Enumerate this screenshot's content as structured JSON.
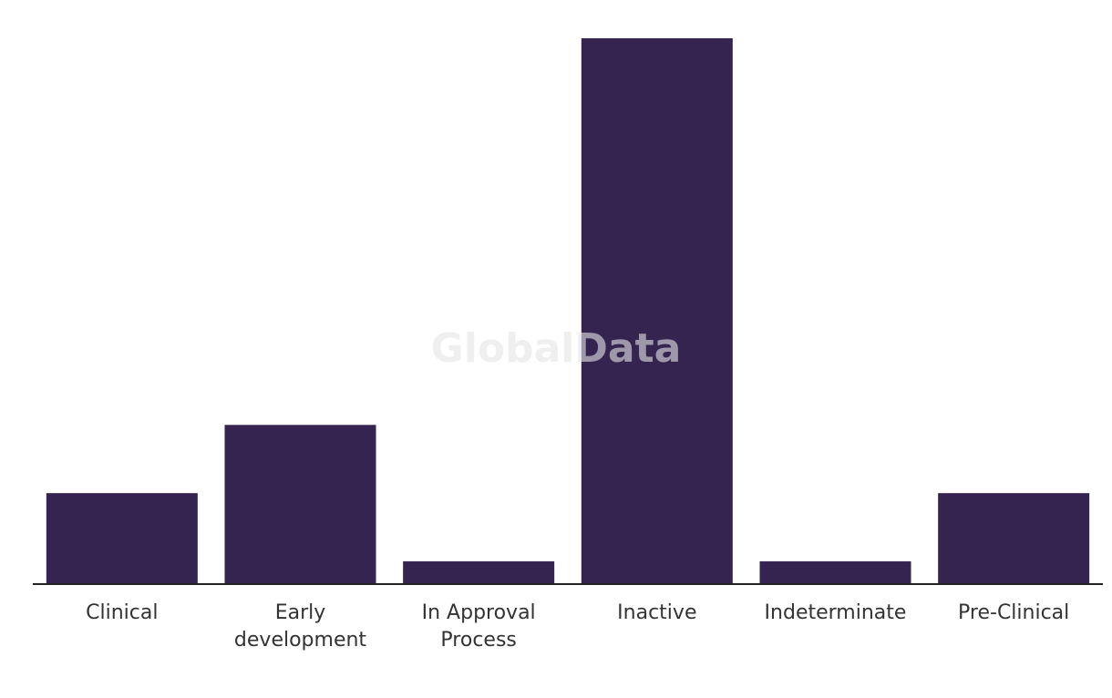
{
  "chart_data": {
    "type": "bar",
    "watermark": "GlobalData",
    "categories": [
      "Clinical",
      "Early development",
      "In Approval Process",
      "Inactive",
      "Indeterminate",
      "Pre-Clinical"
    ],
    "values": [
      4,
      7,
      1,
      24,
      1,
      4
    ],
    "color": "#352350"
  }
}
